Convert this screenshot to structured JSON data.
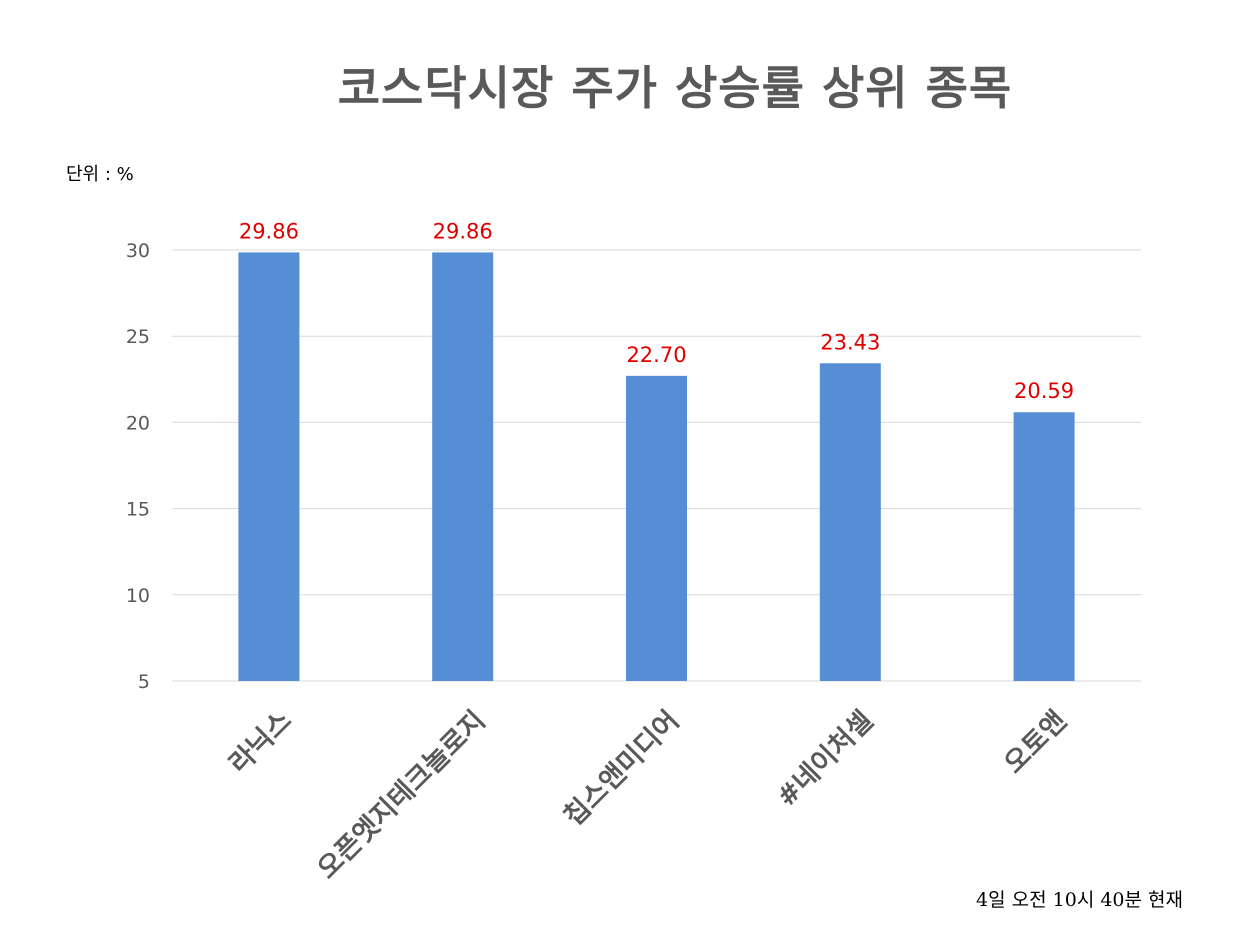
{
  "colors": {
    "bar": "#558ed5",
    "data_label": "#e00000",
    "text": "#595959",
    "grid": "#d9d9d9"
  },
  "chart_data": {
    "type": "bar",
    "title": "코스닥시장 주가 상승률 상위 종목",
    "unit_label": "단위 : %",
    "footnote": "4일  오전  10시 40분 현재",
    "categories": [
      "라닉스",
      "오픈엣지테크놀로지",
      "칩스앤미디어",
      "#네이처셀",
      "오토앤"
    ],
    "values": [
      29.86,
      29.86,
      22.7,
      23.43,
      20.59
    ],
    "data_labels": [
      "29.86",
      "29.86",
      "22.70",
      "23.43",
      "20.59"
    ],
    "y_ticks": [
      5,
      10,
      15,
      20,
      25,
      30
    ],
    "ylim": [
      5,
      30
    ],
    "grid": true,
    "legend": "none"
  }
}
